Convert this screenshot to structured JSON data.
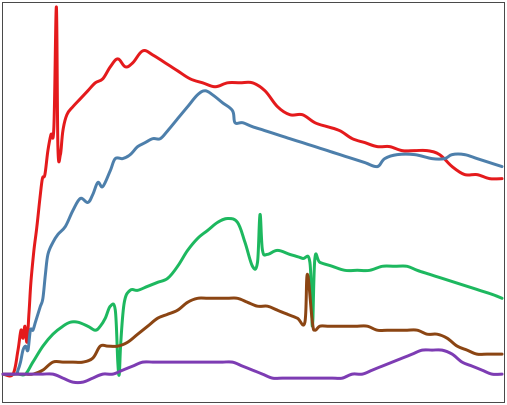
{
  "chart_data": {
    "type": "line",
    "title": "",
    "xlabel": "",
    "ylabel": "",
    "xlim": [
      0,
      100
    ],
    "ylim": [
      0,
      100
    ],
    "grid": false,
    "legend": "none",
    "series": [
      {
        "color": "#e41a1c",
        "points": [
          [
            0,
            7
          ],
          [
            2,
            7
          ],
          [
            3,
            13
          ],
          [
            3.6,
            18
          ],
          [
            4,
            16
          ],
          [
            4.4,
            19
          ],
          [
            4.8,
            15
          ],
          [
            5.2,
            22
          ],
          [
            5.6,
            30
          ],
          [
            6.2,
            38
          ],
          [
            6.8,
            44
          ],
          [
            7.4,
            51
          ],
          [
            7.9,
            56
          ],
          [
            8.4,
            57
          ],
          [
            9,
            63
          ],
          [
            9.6,
            67
          ],
          [
            10.2,
            69
          ],
          [
            10.7,
            99
          ],
          [
            11,
            64
          ],
          [
            11.5,
            62
          ],
          [
            12,
            68
          ],
          [
            12.8,
            72
          ],
          [
            14,
            74
          ],
          [
            15.5,
            76
          ],
          [
            17,
            78
          ],
          [
            18.5,
            80
          ],
          [
            20,
            81
          ],
          [
            21.5,
            84
          ],
          [
            23,
            86
          ],
          [
            24.5,
            84
          ],
          [
            26,
            85
          ],
          [
            28,
            88
          ],
          [
            30,
            87
          ],
          [
            32.5,
            85
          ],
          [
            35,
            83
          ],
          [
            37.5,
            81
          ],
          [
            40,
            80
          ],
          [
            42.5,
            79
          ],
          [
            45,
            80
          ],
          [
            47.5,
            80
          ],
          [
            50,
            80
          ],
          [
            52.5,
            78
          ],
          [
            55,
            74
          ],
          [
            57.5,
            72
          ],
          [
            60,
            72
          ],
          [
            62.5,
            70
          ],
          [
            65,
            69
          ],
          [
            67.5,
            68
          ],
          [
            70,
            66
          ],
          [
            72.5,
            65
          ],
          [
            75,
            64
          ],
          [
            77.5,
            64
          ],
          [
            80,
            63
          ],
          [
            82.5,
            63
          ],
          [
            85,
            63
          ],
          [
            87.5,
            62
          ],
          [
            90,
            59
          ],
          [
            92.5,
            57
          ],
          [
            95,
            57
          ],
          [
            97.5,
            56
          ],
          [
            100,
            56
          ]
        ]
      },
      {
        "color": "#4d7fab",
        "points": [
          [
            0,
            7
          ],
          [
            2.5,
            7
          ],
          [
            3,
            8
          ],
          [
            3.5,
            10
          ],
          [
            4,
            13
          ],
          [
            4.5,
            14
          ],
          [
            5,
            13
          ],
          [
            5.5,
            18
          ],
          [
            6,
            18
          ],
          [
            6.5,
            20
          ],
          [
            7,
            22
          ],
          [
            7.5,
            24
          ],
          [
            8,
            26
          ],
          [
            8.5,
            32
          ],
          [
            9,
            37
          ],
          [
            10,
            40
          ],
          [
            11,
            42
          ],
          [
            12.5,
            44
          ],
          [
            14,
            48
          ],
          [
            15.5,
            51
          ],
          [
            17,
            50
          ],
          [
            18,
            52
          ],
          [
            19,
            55
          ],
          [
            20,
            54
          ],
          [
            21.5,
            58
          ],
          [
            22.5,
            61
          ],
          [
            24,
            61
          ],
          [
            25.5,
            62
          ],
          [
            27,
            64
          ],
          [
            28.5,
            65
          ],
          [
            30,
            66
          ],
          [
            31.5,
            66
          ],
          [
            33,
            68
          ],
          [
            35,
            71
          ],
          [
            37,
            74
          ],
          [
            39,
            77
          ],
          [
            40.5,
            78
          ],
          [
            42,
            77
          ],
          [
            44,
            75
          ],
          [
            46,
            73
          ],
          [
            46.5,
            70
          ],
          [
            48,
            70
          ],
          [
            50,
            69
          ],
          [
            52.5,
            68
          ],
          [
            55,
            67
          ],
          [
            57.5,
            66
          ],
          [
            60,
            65
          ],
          [
            62.5,
            64
          ],
          [
            65,
            63
          ],
          [
            67.5,
            62
          ],
          [
            70,
            61
          ],
          [
            72.5,
            60
          ],
          [
            75,
            59
          ],
          [
            76.5,
            61
          ],
          [
            79,
            62
          ],
          [
            82.5,
            62
          ],
          [
            86,
            61
          ],
          [
            88.5,
            61
          ],
          [
            90,
            62
          ],
          [
            92.5,
            62
          ],
          [
            95,
            61
          ],
          [
            97.5,
            60
          ],
          [
            100,
            59
          ]
        ]
      },
      {
        "color": "#1db85f",
        "points": [
          [
            0,
            7
          ],
          [
            1.5,
            7
          ],
          [
            3,
            7
          ],
          [
            4.5,
            7
          ],
          [
            6,
            10
          ],
          [
            8,
            14
          ],
          [
            10,
            17
          ],
          [
            12,
            19
          ],
          [
            13.5,
            20
          ],
          [
            15,
            20
          ],
          [
            17,
            19
          ],
          [
            18.5,
            18
          ],
          [
            19.5,
            19
          ],
          [
            20.5,
            21
          ],
          [
            21.5,
            24
          ],
          [
            22.5,
            23
          ],
          [
            23,
            10
          ],
          [
            23.3,
            7
          ],
          [
            23.6,
            15
          ],
          [
            24.3,
            25
          ],
          [
            25.5,
            28
          ],
          [
            27,
            28
          ],
          [
            29,
            29
          ],
          [
            31,
            30
          ],
          [
            33,
            31
          ],
          [
            35,
            34
          ],
          [
            37,
            38
          ],
          [
            39,
            41
          ],
          [
            41,
            43
          ],
          [
            43,
            45
          ],
          [
            45,
            46
          ],
          [
            47,
            45
          ],
          [
            48.5,
            40
          ],
          [
            50,
            34
          ],
          [
            51,
            35
          ],
          [
            51.5,
            47
          ],
          [
            52,
            38
          ],
          [
            53,
            37
          ],
          [
            55,
            38
          ],
          [
            57.5,
            37
          ],
          [
            60,
            36
          ],
          [
            61.5,
            35
          ],
          [
            62,
            19
          ],
          [
            62.5,
            36
          ],
          [
            63.5,
            35
          ],
          [
            66,
            34
          ],
          [
            68.5,
            33
          ],
          [
            71,
            33
          ],
          [
            73.5,
            33
          ],
          [
            76,
            34
          ],
          [
            78.5,
            34
          ],
          [
            81,
            34
          ],
          [
            83,
            33
          ],
          [
            85.5,
            32
          ],
          [
            88,
            31
          ],
          [
            90.5,
            30
          ],
          [
            93,
            29
          ],
          [
            95.5,
            28
          ],
          [
            98,
            27
          ],
          [
            100,
            26
          ]
        ]
      },
      {
        "color": "#8b4513",
        "points": [
          [
            0,
            7
          ],
          [
            2,
            7
          ],
          [
            4,
            7
          ],
          [
            6,
            7
          ],
          [
            8,
            8
          ],
          [
            10,
            10
          ],
          [
            12,
            10
          ],
          [
            14,
            10
          ],
          [
            16,
            10
          ],
          [
            18,
            11
          ],
          [
            19.5,
            14
          ],
          [
            21,
            14
          ],
          [
            23,
            14
          ],
          [
            25,
            15
          ],
          [
            27,
            17
          ],
          [
            29,
            19
          ],
          [
            31,
            21
          ],
          [
            33,
            22
          ],
          [
            35,
            23
          ],
          [
            37,
            25
          ],
          [
            39,
            26
          ],
          [
            41,
            26
          ],
          [
            43,
            26
          ],
          [
            45,
            26
          ],
          [
            47,
            26
          ],
          [
            49,
            25
          ],
          [
            51,
            24
          ],
          [
            53,
            24
          ],
          [
            55,
            23
          ],
          [
            57,
            22
          ],
          [
            59,
            21
          ],
          [
            60.5,
            20
          ],
          [
            61,
            32
          ],
          [
            62,
            20
          ],
          [
            62.5,
            18
          ],
          [
            63.5,
            19
          ],
          [
            65,
            19
          ],
          [
            67,
            19
          ],
          [
            69,
            19
          ],
          [
            71,
            19
          ],
          [
            73,
            19
          ],
          [
            75,
            18
          ],
          [
            77,
            18
          ],
          [
            79,
            18
          ],
          [
            81,
            18
          ],
          [
            83,
            18
          ],
          [
            85,
            17
          ],
          [
            87,
            17
          ],
          [
            89,
            16
          ],
          [
            91,
            14
          ],
          [
            93,
            13
          ],
          [
            95,
            12
          ],
          [
            97,
            12
          ],
          [
            99,
            12
          ],
          [
            100,
            12
          ]
        ]
      },
      {
        "color": "#7d3cb3",
        "points": [
          [
            0,
            7
          ],
          [
            2,
            7
          ],
          [
            4,
            7
          ],
          [
            6,
            7
          ],
          [
            8,
            7
          ],
          [
            10,
            7
          ],
          [
            12,
            6
          ],
          [
            14,
            5
          ],
          [
            16,
            5
          ],
          [
            18,
            6
          ],
          [
            20,
            7
          ],
          [
            22,
            7
          ],
          [
            24,
            8
          ],
          [
            26,
            9
          ],
          [
            28,
            10
          ],
          [
            30,
            10
          ],
          [
            32,
            10
          ],
          [
            34,
            10
          ],
          [
            36,
            10
          ],
          [
            38,
            10
          ],
          [
            40,
            10
          ],
          [
            42,
            10
          ],
          [
            44,
            10
          ],
          [
            46,
            10
          ],
          [
            48,
            9
          ],
          [
            50,
            8
          ],
          [
            52,
            7
          ],
          [
            54,
            6
          ],
          [
            56,
            6
          ],
          [
            58,
            6
          ],
          [
            60,
            6
          ],
          [
            62,
            6
          ],
          [
            64,
            6
          ],
          [
            66,
            6
          ],
          [
            68,
            6
          ],
          [
            70,
            7
          ],
          [
            72,
            7
          ],
          [
            74,
            8
          ],
          [
            76,
            9
          ],
          [
            78,
            10
          ],
          [
            80,
            11
          ],
          [
            82,
            12
          ],
          [
            84,
            13
          ],
          [
            86,
            13
          ],
          [
            88,
            13
          ],
          [
            90,
            12
          ],
          [
            92,
            10
          ],
          [
            94,
            9
          ],
          [
            96,
            8
          ],
          [
            98,
            7
          ],
          [
            100,
            7
          ]
        ]
      }
    ]
  }
}
